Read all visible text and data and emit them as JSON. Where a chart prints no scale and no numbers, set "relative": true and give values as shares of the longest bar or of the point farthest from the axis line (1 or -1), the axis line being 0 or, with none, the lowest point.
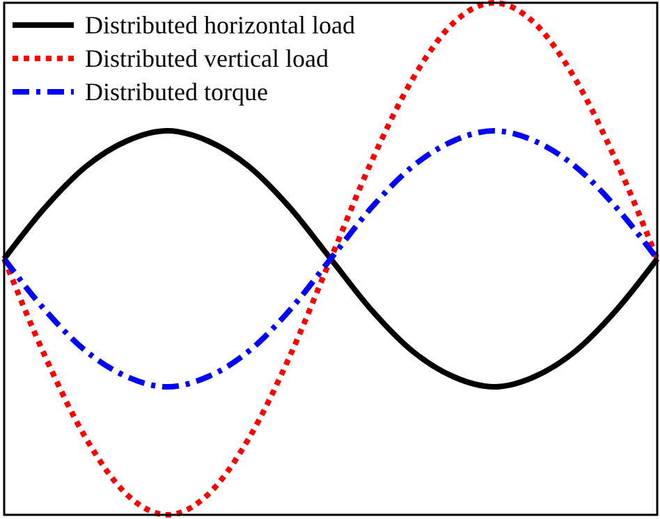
{
  "chart_data": {
    "type": "line",
    "relative": true,
    "legend": "top left",
    "categories": [
      null,
      null,
      null,
      null,
      null,
      null,
      null,
      null,
      null,
      null,
      null,
      null,
      null,
      null,
      null,
      null,
      null
    ],
    "series": [
      {
        "name": "Distributed horizontal load",
        "color": "#000000",
        "line_style": "solid",
        "values": [
          0.5,
          0.6,
          0.68,
          0.73,
          0.75,
          0.73,
          0.68,
          0.6,
          0.5,
          0.4,
          0.32,
          0.27,
          0.25,
          0.27,
          0.32,
          0.4,
          0.5
        ]
      },
      {
        "name": "Distributed vertical load",
        "color": "#ff0000",
        "line_style": "dotted",
        "values": [
          0.5,
          0.31,
          0.15,
          0.04,
          0,
          0.04,
          0.15,
          0.31,
          0.5,
          0.69,
          0.85,
          0.96,
          1,
          0.96,
          0.85,
          0.69,
          0.5
        ]
      },
      {
        "name": "Distributed torque",
        "color": "#0000ff",
        "line_style": "dashed",
        "values": [
          0.5,
          0.4,
          0.32,
          0.27,
          0.25,
          0.27,
          0.32,
          0.4,
          0.5,
          0.6,
          0.68,
          0.73,
          0.75,
          0.73,
          0.68,
          0.6,
          0.5
        ]
      }
    ]
  }
}
